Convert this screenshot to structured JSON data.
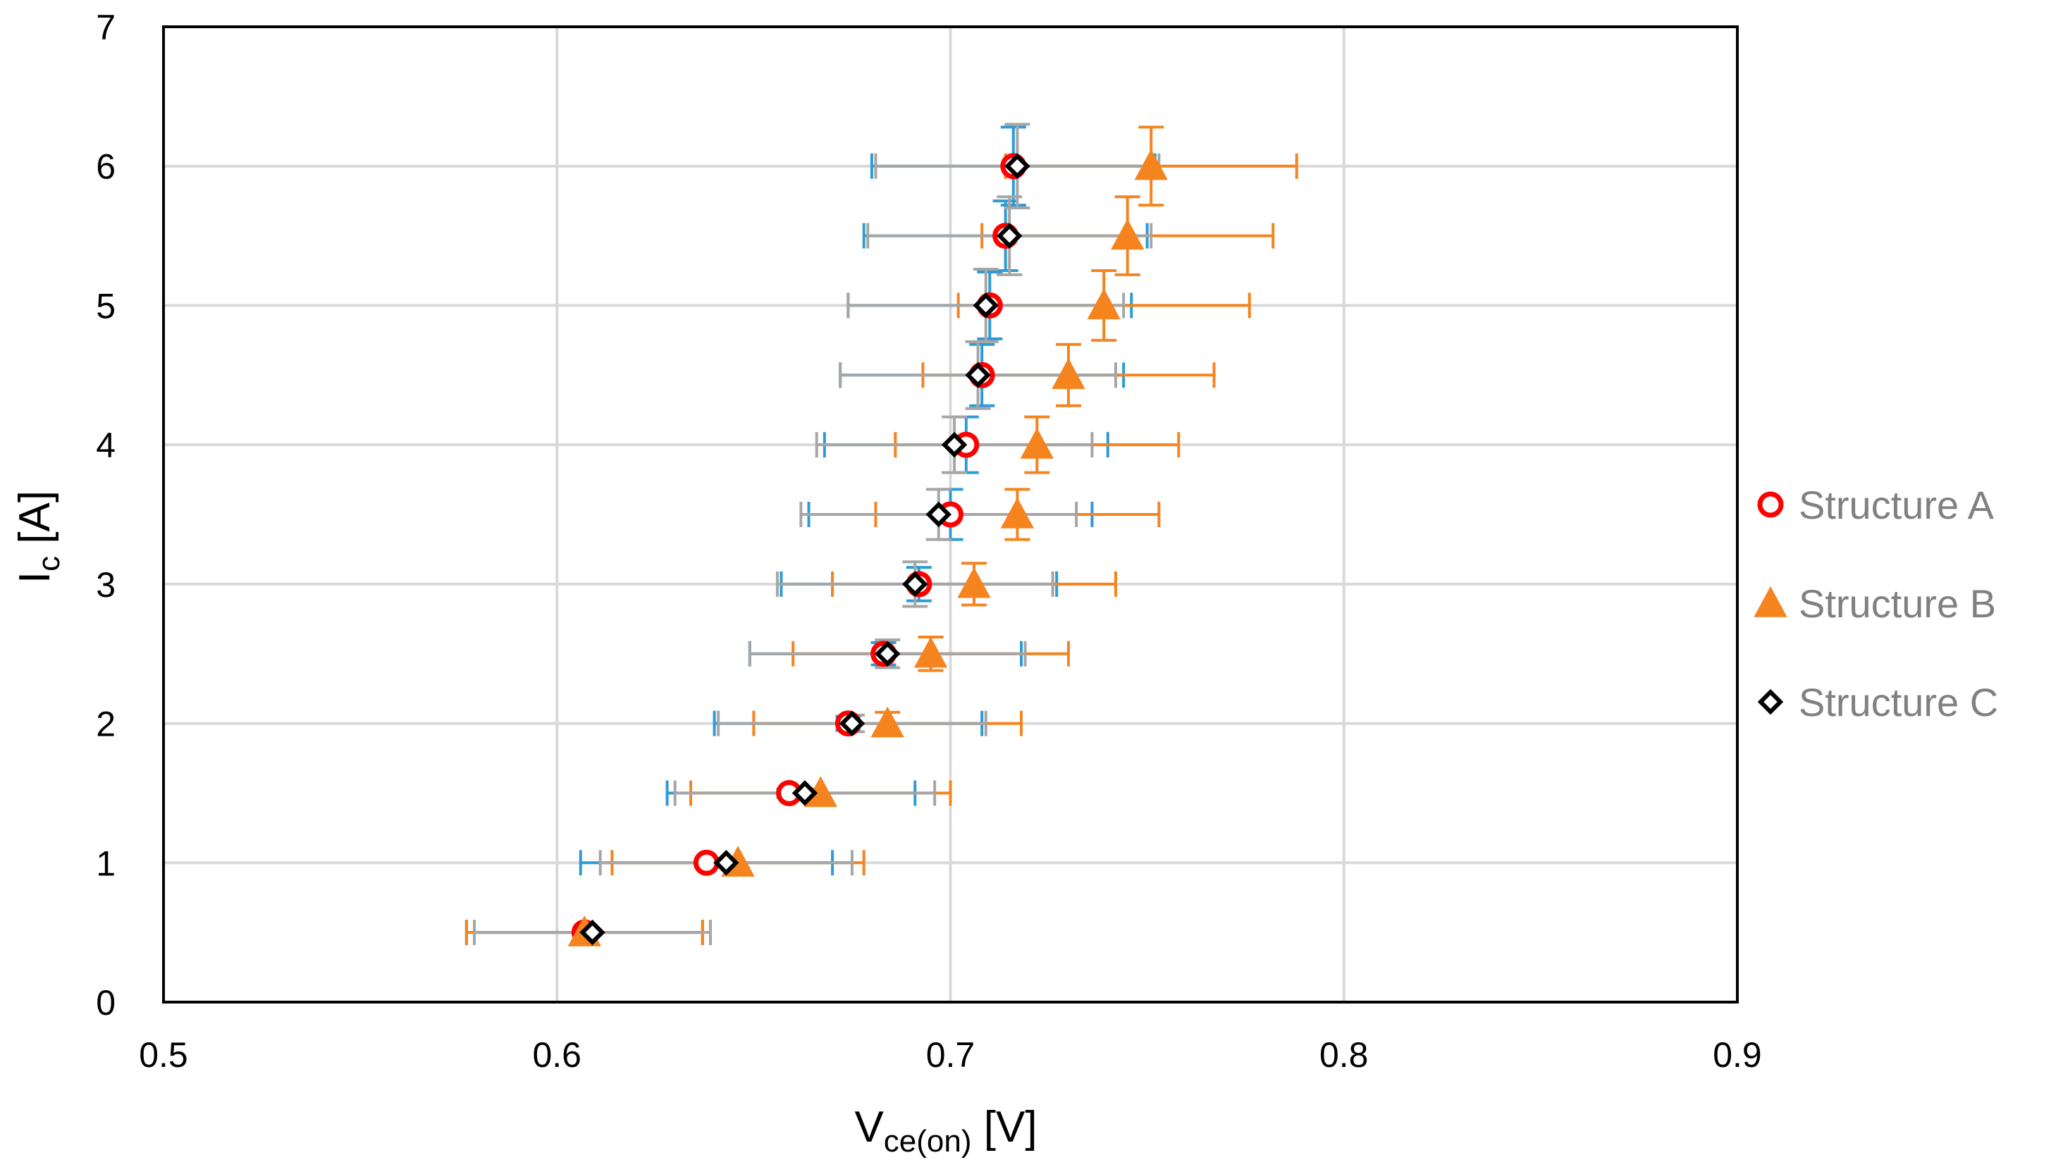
{
  "chart_data": {
    "type": "scatter",
    "title": "",
    "xlabel": {
      "main": "V",
      "sub": "ce(on)",
      "unit": " [V]"
    },
    "ylabel": {
      "main": "I",
      "sub": "c",
      "unit": " [A]"
    },
    "xlim": [
      0.5,
      0.9
    ],
    "ylim": [
      0,
      7
    ],
    "x_ticks": [
      "0.5",
      "0.6",
      "0.7",
      "0.8",
      "0.9"
    ],
    "y_ticks": [
      "0",
      "1",
      "2",
      "3",
      "4",
      "5",
      "6",
      "7"
    ],
    "grid": true,
    "legend_position": "right",
    "series": [
      {
        "name": "Structure A",
        "marker": "circle",
        "color": "#FF0000",
        "errorbar_color": "#2E9BD6",
        "points": [
          {
            "x": 0.607,
            "y": 0.5,
            "xerr": [
              0.03,
              0.03
            ],
            "yerr": 0
          },
          {
            "x": 0.638,
            "y": 1.0,
            "xerr": [
              0.032,
              0.032
            ],
            "yerr": 0
          },
          {
            "x": 0.659,
            "y": 1.5,
            "xerr": [
              0.031,
              0.032
            ],
            "yerr": 0.03
          },
          {
            "x": 0.674,
            "y": 2.0,
            "xerr": [
              0.034,
              0.034
            ],
            "yerr": 0.05
          },
          {
            "x": 0.683,
            "y": 2.5,
            "xerr": [
              0.034,
              0.035
            ],
            "yerr": 0.08
          },
          {
            "x": 0.692,
            "y": 3.0,
            "xerr": [
              0.035,
              0.035
            ],
            "yerr": 0.12
          },
          {
            "x": 0.7,
            "y": 3.5,
            "xerr": [
              0.036,
              0.036
            ],
            "yerr": 0.18
          },
          {
            "x": 0.704,
            "y": 4.0,
            "xerr": [
              0.036,
              0.036
            ],
            "yerr": 0.2
          },
          {
            "x": 0.708,
            "y": 4.5,
            "xerr": [
              0.036,
              0.036
            ],
            "yerr": 0.22
          },
          {
            "x": 0.71,
            "y": 5.0,
            "xerr": [
              0.036,
              0.036
            ],
            "yerr": 0.24
          },
          {
            "x": 0.714,
            "y": 5.5,
            "xerr": [
              0.036,
              0.036
            ],
            "yerr": 0.25
          },
          {
            "x": 0.716,
            "y": 6.0,
            "xerr": [
              0.036,
              0.036
            ],
            "yerr": 0.28
          }
        ]
      },
      {
        "name": "Structure B",
        "marker": "triangle",
        "color": "#F5841F",
        "errorbar_color": "#F5841F",
        "points": [
          {
            "x": 0.607,
            "y": 0.5,
            "xerr": [
              0.03,
              0.03
            ],
            "yerr": 0
          },
          {
            "x": 0.646,
            "y": 1.0,
            "xerr": [
              0.032,
              0.032
            ],
            "yerr": 0
          },
          {
            "x": 0.667,
            "y": 1.5,
            "xerr": [
              0.033,
              0.033
            ],
            "yerr": 0
          },
          {
            "x": 0.684,
            "y": 2.0,
            "xerr": [
              0.034,
              0.034
            ],
            "yerr": 0.08
          },
          {
            "x": 0.695,
            "y": 2.5,
            "xerr": [
              0.035,
              0.035
            ],
            "yerr": 0.12
          },
          {
            "x": 0.706,
            "y": 3.0,
            "xerr": [
              0.036,
              0.036
            ],
            "yerr": 0.15
          },
          {
            "x": 0.717,
            "y": 3.5,
            "xerr": [
              0.036,
              0.036
            ],
            "yerr": 0.18
          },
          {
            "x": 0.722,
            "y": 4.0,
            "xerr": [
              0.036,
              0.036
            ],
            "yerr": 0.2
          },
          {
            "x": 0.73,
            "y": 4.5,
            "xerr": [
              0.037,
              0.037
            ],
            "yerr": 0.22
          },
          {
            "x": 0.739,
            "y": 5.0,
            "xerr": [
              0.037,
              0.037
            ],
            "yerr": 0.25
          },
          {
            "x": 0.745,
            "y": 5.5,
            "xerr": [
              0.037,
              0.037
            ],
            "yerr": 0.28
          },
          {
            "x": 0.751,
            "y": 6.0,
            "xerr": [
              0.037,
              0.037
            ],
            "yerr": 0.28
          }
        ]
      },
      {
        "name": "Structure C",
        "marker": "diamond",
        "color": "#000000",
        "errorbar_color": "#A6A6A6",
        "points": [
          {
            "x": 0.609,
            "y": 0.5,
            "xerr": [
              0.03,
              0.03
            ],
            "yerr": 0
          },
          {
            "x": 0.643,
            "y": 1.0,
            "xerr": [
              0.032,
              0.032
            ],
            "yerr": 0
          },
          {
            "x": 0.663,
            "y": 1.5,
            "xerr": [
              0.033,
              0.033
            ],
            "yerr": 0.03
          },
          {
            "x": 0.675,
            "y": 2.0,
            "xerr": [
              0.034,
              0.034
            ],
            "yerr": 0.06
          },
          {
            "x": 0.684,
            "y": 2.5,
            "xerr": [
              0.035,
              0.035
            ],
            "yerr": 0.1
          },
          {
            "x": 0.691,
            "y": 3.0,
            "xerr": [
              0.035,
              0.035
            ],
            "yerr": 0.16
          },
          {
            "x": 0.697,
            "y": 3.5,
            "xerr": [
              0.035,
              0.035
            ],
            "yerr": 0.18
          },
          {
            "x": 0.701,
            "y": 4.0,
            "xerr": [
              0.035,
              0.035
            ],
            "yerr": 0.2
          },
          {
            "x": 0.707,
            "y": 4.5,
            "xerr": [
              0.035,
              0.035
            ],
            "yerr": 0.24
          },
          {
            "x": 0.709,
            "y": 5.0,
            "xerr": [
              0.035,
              0.035
            ],
            "yerr": 0.26
          },
          {
            "x": 0.715,
            "y": 5.5,
            "xerr": [
              0.036,
              0.036
            ],
            "yerr": 0.28
          },
          {
            "x": 0.717,
            "y": 6.0,
            "xerr": [
              0.036,
              0.036
            ],
            "yerr": 0.3
          }
        ]
      }
    ]
  }
}
